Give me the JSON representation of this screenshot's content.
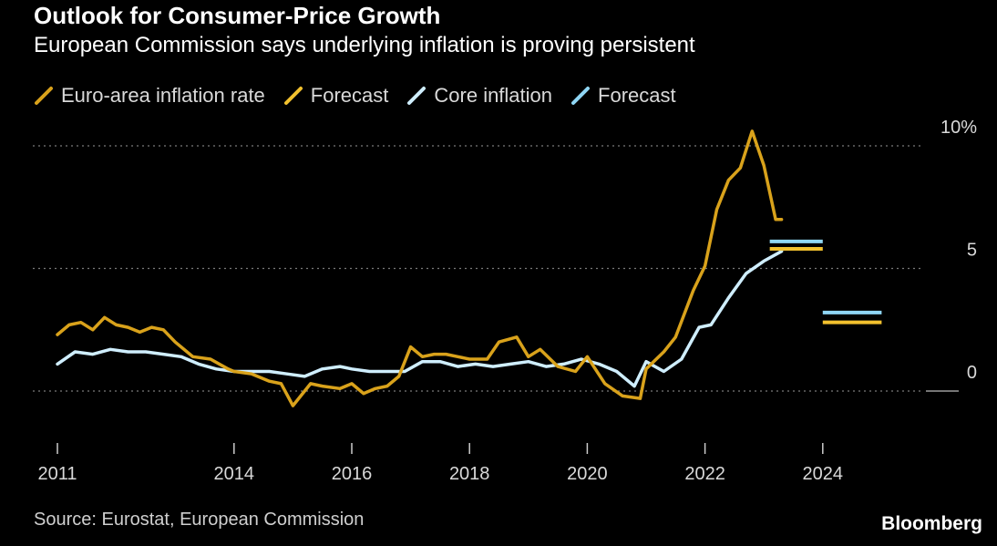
{
  "header": {
    "title": "Outlook for Consumer-Price Growth",
    "subtitle": "European Commission says underlying inflation is proving persistent"
  },
  "footer": {
    "source": "Source: Eurostat, European Commission",
    "brand": "Bloomberg"
  },
  "colors": {
    "headline": "#d9a21b",
    "headline_forecast": "#f2c12e",
    "core": "#cfeefe",
    "core_forecast": "#8fd6f4",
    "grid": "#7a7a7a",
    "text": "#d9d9d9"
  },
  "chart_data": {
    "type": "line",
    "title": "Outlook for Consumer-Price Growth",
    "subtitle": "European Commission says underlying inflation is proving persistent",
    "xlabel": "",
    "ylabel": "",
    "xlim": [
      2011,
      2025.7
    ],
    "ylim": [
      -2.3,
      11
    ],
    "y_ticks": [
      0,
      5,
      10
    ],
    "y_tick_labels": [
      "0",
      "5",
      "10%"
    ],
    "x_ticks": [
      2011,
      2014,
      2016,
      2018,
      2020,
      2022,
      2024
    ],
    "x_tick_labels": [
      "2011",
      "2014",
      "2016",
      "2018",
      "2020",
      "2022",
      "2024"
    ],
    "grid": true,
    "legend_position": "top-left",
    "series": [
      {
        "name": "Euro-area inflation rate",
        "color": "#d9a21b",
        "points": [
          [
            2011.0,
            2.3
          ],
          [
            2011.2,
            2.7
          ],
          [
            2011.4,
            2.8
          ],
          [
            2011.6,
            2.5
          ],
          [
            2011.8,
            3.0
          ],
          [
            2012.0,
            2.7
          ],
          [
            2012.2,
            2.6
          ],
          [
            2012.4,
            2.4
          ],
          [
            2012.6,
            2.6
          ],
          [
            2012.8,
            2.5
          ],
          [
            2013.0,
            2.0
          ],
          [
            2013.3,
            1.4
          ],
          [
            2013.6,
            1.3
          ],
          [
            2013.9,
            0.9
          ],
          [
            2014.0,
            0.8
          ],
          [
            2014.3,
            0.7
          ],
          [
            2014.6,
            0.4
          ],
          [
            2014.8,
            0.3
          ],
          [
            2015.0,
            -0.6
          ],
          [
            2015.3,
            0.3
          ],
          [
            2015.5,
            0.2
          ],
          [
            2015.8,
            0.1
          ],
          [
            2016.0,
            0.3
          ],
          [
            2016.2,
            -0.1
          ],
          [
            2016.4,
            0.1
          ],
          [
            2016.6,
            0.2
          ],
          [
            2016.8,
            0.6
          ],
          [
            2017.0,
            1.8
          ],
          [
            2017.2,
            1.4
          ],
          [
            2017.4,
            1.5
          ],
          [
            2017.6,
            1.5
          ],
          [
            2017.8,
            1.4
          ],
          [
            2018.0,
            1.3
          ],
          [
            2018.3,
            1.3
          ],
          [
            2018.5,
            2.0
          ],
          [
            2018.8,
            2.2
          ],
          [
            2019.0,
            1.4
          ],
          [
            2019.2,
            1.7
          ],
          [
            2019.5,
            1.0
          ],
          [
            2019.8,
            0.8
          ],
          [
            2020.0,
            1.4
          ],
          [
            2020.3,
            0.3
          ],
          [
            2020.6,
            -0.2
          ],
          [
            2020.9,
            -0.3
          ],
          [
            2021.0,
            0.9
          ],
          [
            2021.3,
            1.6
          ],
          [
            2021.5,
            2.2
          ],
          [
            2021.8,
            4.1
          ],
          [
            2022.0,
            5.1
          ],
          [
            2022.2,
            7.4
          ],
          [
            2022.4,
            8.6
          ],
          [
            2022.6,
            9.1
          ],
          [
            2022.8,
            10.6
          ],
          [
            2023.0,
            9.2
          ],
          [
            2023.2,
            7.0
          ],
          [
            2023.3,
            7.0
          ]
        ]
      },
      {
        "name": "Forecast",
        "color": "#f2c12e",
        "segments": [
          {
            "x0": 2023.0,
            "x1": 2024.0,
            "y": 5.8
          },
          {
            "x0": 2024.0,
            "x1": 2025.0,
            "y": 2.8
          }
        ]
      },
      {
        "name": "Core inflation",
        "color": "#cfeefe",
        "points": [
          [
            2011.0,
            1.1
          ],
          [
            2011.3,
            1.6
          ],
          [
            2011.6,
            1.5
          ],
          [
            2011.9,
            1.7
          ],
          [
            2012.2,
            1.6
          ],
          [
            2012.5,
            1.6
          ],
          [
            2012.8,
            1.5
          ],
          [
            2013.1,
            1.4
          ],
          [
            2013.4,
            1.1
          ],
          [
            2013.7,
            0.9
          ],
          [
            2014.0,
            0.8
          ],
          [
            2014.3,
            0.8
          ],
          [
            2014.6,
            0.8
          ],
          [
            2014.9,
            0.7
          ],
          [
            2015.2,
            0.6
          ],
          [
            2015.5,
            0.9
          ],
          [
            2015.8,
            1.0
          ],
          [
            2016.0,
            0.9
          ],
          [
            2016.3,
            0.8
          ],
          [
            2016.6,
            0.8
          ],
          [
            2016.9,
            0.8
          ],
          [
            2017.2,
            1.2
          ],
          [
            2017.5,
            1.2
          ],
          [
            2017.8,
            1.0
          ],
          [
            2018.1,
            1.1
          ],
          [
            2018.4,
            1.0
          ],
          [
            2018.7,
            1.1
          ],
          [
            2019.0,
            1.2
          ],
          [
            2019.3,
            1.0
          ],
          [
            2019.6,
            1.1
          ],
          [
            2019.9,
            1.3
          ],
          [
            2020.2,
            1.1
          ],
          [
            2020.5,
            0.8
          ],
          [
            2020.8,
            0.2
          ],
          [
            2021.0,
            1.2
          ],
          [
            2021.3,
            0.8
          ],
          [
            2021.6,
            1.3
          ],
          [
            2021.9,
            2.6
          ],
          [
            2022.1,
            2.7
          ],
          [
            2022.4,
            3.8
          ],
          [
            2022.7,
            4.8
          ],
          [
            2023.0,
            5.3
          ],
          [
            2023.3,
            5.7
          ]
        ]
      },
      {
        "name": "Forecast",
        "color": "#8fd6f4",
        "segments": [
          {
            "x0": 2023.0,
            "x1": 2024.0,
            "y": 6.1
          },
          {
            "x0": 2024.0,
            "x1": 2025.0,
            "y": 3.2
          }
        ]
      }
    ]
  }
}
